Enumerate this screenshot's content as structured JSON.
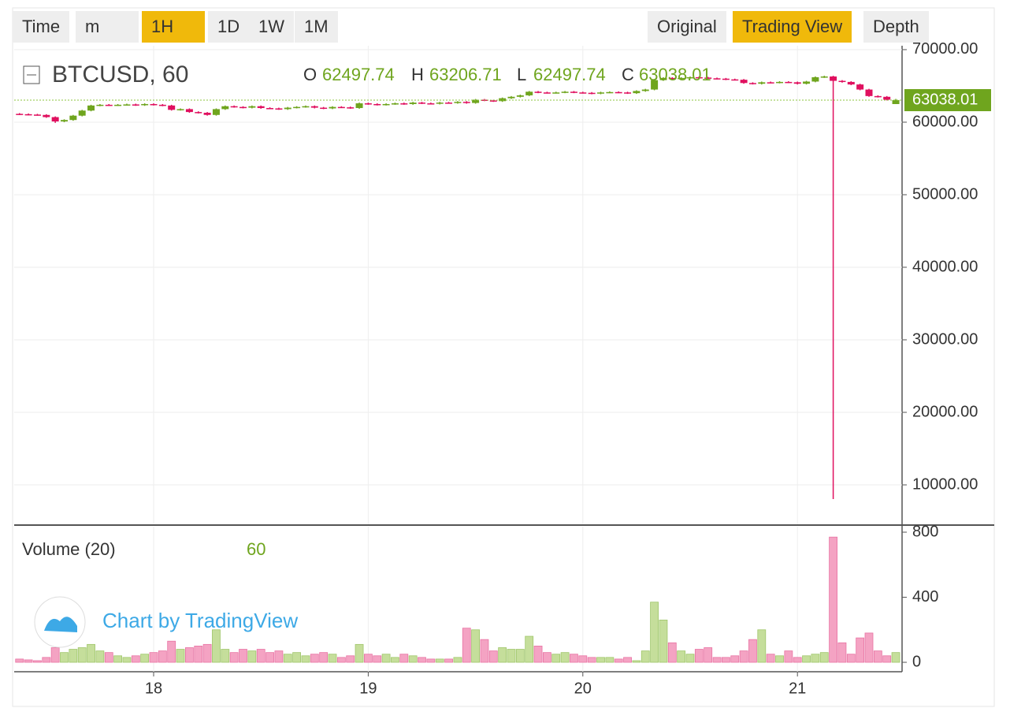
{
  "toolbar": {
    "buttons": [
      {
        "label": "Time",
        "active": false
      },
      {
        "label": "m",
        "active": false
      },
      {
        "label": "1H",
        "active": true
      },
      {
        "label": "1D",
        "active": false
      },
      {
        "label": "1W",
        "active": false
      },
      {
        "label": "1M",
        "active": false
      },
      {
        "label": "Original",
        "active": false
      },
      {
        "label": "Trading View",
        "active": true
      },
      {
        "label": "Depth",
        "active": false
      }
    ]
  },
  "chart_data": {
    "type": "candlestick",
    "title": "BTCUSD, 60",
    "volume_title": "Volume (20)",
    "branding": "Chart by TradingView",
    "legend_labels": {
      "open": "O",
      "high": "H",
      "low": "L",
      "close": "C"
    },
    "up_color": "#6fa51e",
    "down_color": "#e0105f",
    "volume_up_color": "#c5de9b",
    "volume_down_color": "#f4a3c3",
    "grid": true,
    "categories": [
      null,
      null,
      null,
      null,
      null,
      null,
      null,
      null,
      null,
      null,
      null,
      null,
      null,
      null,
      null,
      "18",
      null,
      null,
      null,
      null,
      null,
      null,
      null,
      null,
      null,
      null,
      null,
      null,
      null,
      null,
      null,
      null,
      null,
      null,
      null,
      null,
      null,
      null,
      null,
      "19",
      null,
      null,
      null,
      null,
      null,
      null,
      null,
      null,
      null,
      null,
      null,
      null,
      null,
      null,
      null,
      null,
      null,
      null,
      null,
      null,
      null,
      null,
      null,
      "20",
      null,
      null,
      null,
      null,
      null,
      null,
      null,
      null,
      null,
      null,
      null,
      null,
      null,
      null,
      null,
      null,
      null,
      null,
      null,
      null,
      null,
      null,
      null,
      "21",
      null,
      null,
      null,
      null,
      null,
      null,
      null,
      null,
      null,
      null,
      null
    ],
    "open": [
      61150,
      61100,
      61050,
      61000,
      60700,
      60100,
      60300,
      60900,
      61600,
      62300,
      62400,
      62350,
      62400,
      62450,
      62350,
      62500,
      62400,
      62300,
      61700,
      61800,
      61400,
      61300,
      61000,
      61800,
      62200,
      62100,
      62000,
      62200,
      61950,
      61900,
      61800,
      62000,
      62100,
      62200,
      62000,
      61900,
      62100,
      62050,
      61950,
      62600,
      62500,
      62400,
      62500,
      62600,
      62500,
      62700,
      62600,
      62550,
      62700,
      62650,
      62800,
      62650,
      63100,
      63000,
      62900,
      63300,
      63500,
      63700,
      64200,
      64100,
      64050,
      64100,
      64200,
      64100,
      64050,
      63950,
      64100,
      64150,
      64100,
      64000,
      64300,
      64500,
      65800,
      66100,
      66000,
      66100,
      66200,
      66150,
      66050,
      66000,
      65900,
      65850,
      65400,
      65300,
      65500,
      65450,
      65550,
      65500,
      65300,
      65600,
      66200,
      66300,
      65700,
      65550,
      65200,
      64500,
      63600,
      63500,
      62497.74
    ],
    "high": [
      61250,
      61200,
      61150,
      61100,
      60800,
      60400,
      61000,
      61700,
      62400,
      62500,
      62500,
      62500,
      62550,
      62550,
      62600,
      62600,
      62500,
      62400,
      61900,
      61900,
      61500,
      61400,
      61900,
      62300,
      62300,
      62200,
      62300,
      62300,
      62050,
      62000,
      62100,
      62200,
      62300,
      62300,
      62100,
      62200,
      62200,
      62150,
      62700,
      62700,
      62600,
      62600,
      62700,
      62700,
      62800,
      62800,
      62700,
      62800,
      62800,
      62900,
      62900,
      63200,
      63200,
      63100,
      63400,
      63600,
      63800,
      64300,
      64300,
      64200,
      64200,
      64300,
      64300,
      64200,
      64150,
      64200,
      64250,
      64250,
      64200,
      64400,
      64600,
      65900,
      66200,
      66200,
      66200,
      66300,
      66300,
      66250,
      66150,
      66100,
      66000,
      65950,
      65500,
      65600,
      65600,
      65650,
      65650,
      65600,
      65700,
      66300,
      66400,
      66400,
      65800,
      65650,
      65300,
      64600,
      63700,
      63600,
      63206.71
    ],
    "low": [
      61000,
      60950,
      60900,
      60600,
      59900,
      60000,
      60200,
      60800,
      61500,
      62200,
      62250,
      62250,
      62300,
      62250,
      62250,
      62300,
      62200,
      61600,
      61600,
      61300,
      61200,
      60900,
      60900,
      61700,
      62000,
      61900,
      61900,
      61850,
      61800,
      61700,
      61700,
      61900,
      62000,
      61900,
      61800,
      61800,
      61950,
      61850,
      61850,
      62400,
      62300,
      62300,
      62400,
      62400,
      62400,
      62500,
      62450,
      62450,
      62550,
      62550,
      62550,
      62550,
      62900,
      62800,
      62800,
      63200,
      63400,
      63600,
      64000,
      63950,
      63950,
      64000,
      64000,
      63950,
      63850,
      63850,
      64000,
      64000,
      63900,
      63900,
      64200,
      64400,
      65700,
      65900,
      65900,
      66000,
      66050,
      65950,
      65900,
      65800,
      65750,
      65300,
      65200,
      65200,
      65350,
      65350,
      65400,
      65200,
      65200,
      65500,
      66100,
      8040,
      65450,
      65100,
      64400,
      63500,
      63400,
      63000,
      62497.74
    ],
    "close": [
      61100,
      61050,
      61000,
      60700,
      60100,
      60300,
      60900,
      61600,
      62300,
      62400,
      62350,
      62400,
      62450,
      62350,
      62500,
      62400,
      62300,
      61700,
      61800,
      61400,
      61300,
      61000,
      61800,
      62200,
      62100,
      62000,
      62200,
      61950,
      61900,
      61800,
      62000,
      62100,
      62200,
      62000,
      61900,
      62100,
      62050,
      61950,
      62600,
      62500,
      62400,
      62500,
      62600,
      62500,
      62700,
      62600,
      62550,
      62700,
      62650,
      62800,
      62650,
      63100,
      63000,
      62900,
      63300,
      63500,
      63700,
      64200,
      64100,
      64050,
      64100,
      64200,
      64100,
      64050,
      63950,
      64100,
      64150,
      64100,
      64000,
      64300,
      64500,
      65800,
      66100,
      66000,
      66100,
      66200,
      66150,
      66050,
      66000,
      65900,
      65850,
      65400,
      65300,
      65500,
      65450,
      65550,
      65500,
      65300,
      65600,
      66200,
      66300,
      65700,
      65550,
      65200,
      64500,
      63600,
      63500,
      63100,
      63038.01
    ],
    "volume": [
      20,
      15,
      10,
      30,
      90,
      60,
      80,
      90,
      110,
      70,
      60,
      40,
      30,
      40,
      50,
      60,
      70,
      130,
      80,
      90,
      100,
      110,
      200,
      80,
      60,
      80,
      70,
      80,
      60,
      70,
      50,
      60,
      40,
      50,
      60,
      50,
      30,
      40,
      110,
      50,
      40,
      50,
      30,
      50,
      40,
      30,
      20,
      20,
      20,
      30,
      210,
      200,
      140,
      70,
      90,
      80,
      80,
      160,
      100,
      60,
      50,
      60,
      50,
      40,
      30,
      30,
      30,
      20,
      30,
      10,
      70,
      370,
      260,
      120,
      70,
      50,
      80,
      90,
      30,
      30,
      40,
      70,
      140,
      200,
      50,
      40,
      70,
      30,
      40,
      50,
      60,
      770,
      120,
      50,
      150,
      180,
      70,
      40,
      60
    ],
    "ylim": [
      4565,
      70540
    ],
    "yticks": [
      {
        "value": 10000,
        "label": "10000.00"
      },
      {
        "value": 20000,
        "label": "20000.00"
      },
      {
        "value": 30000,
        "label": "30000.00"
      },
      {
        "value": 40000,
        "label": "40000.00"
      },
      {
        "value": 50000,
        "label": "50000.00"
      },
      {
        "value": 60000,
        "label": "60000.00"
      },
      {
        "value": 70000,
        "label": "70000.00"
      }
    ],
    "y2lim": [
      -58,
      834
    ],
    "y2ticks": [
      0,
      400,
      800
    ]
  }
}
